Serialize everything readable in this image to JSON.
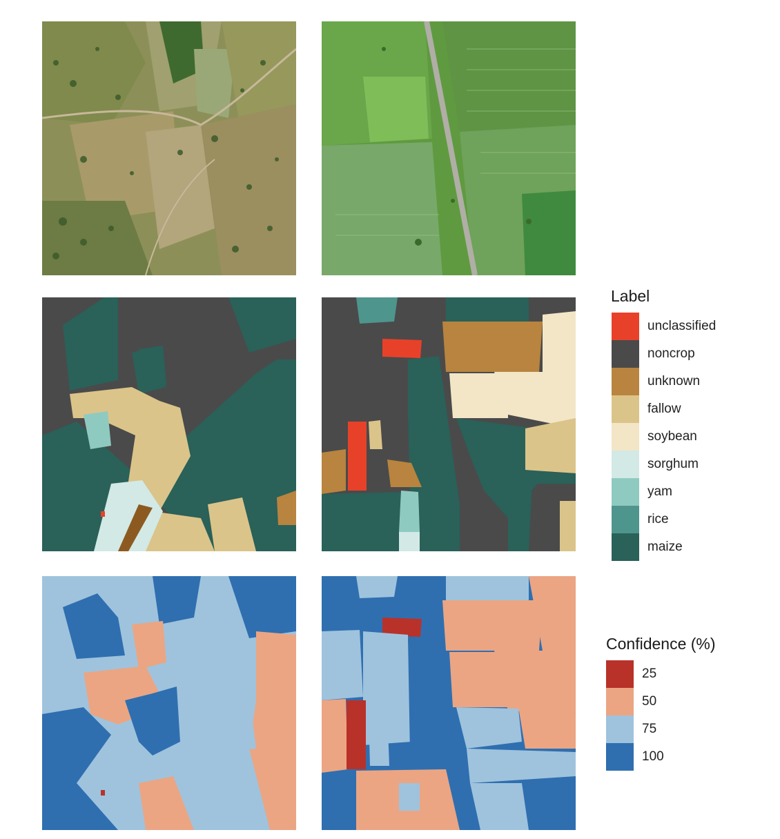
{
  "legends": {
    "label": {
      "title": "Label",
      "items": [
        {
          "label": "unclassified",
          "color": "#e8412a"
        },
        {
          "label": "noncrop",
          "color": "#4a4a4a"
        },
        {
          "label": "unknown",
          "color": "#b8843f"
        },
        {
          "label": "fallow",
          "color": "#dbc48a"
        },
        {
          "label": "soybean",
          "color": "#f2e6c6"
        },
        {
          "label": "sorghum",
          "color": "#d2e9e6"
        },
        {
          "label": "yam",
          "color": "#8fcac0"
        },
        {
          "label": "rice",
          "color": "#4e958d"
        },
        {
          "label": "maize",
          "color": "#2a6159"
        }
      ]
    },
    "confidence": {
      "title": "Confidence (%)",
      "items": [
        {
          "label": "25",
          "color": "#b8322a"
        },
        {
          "label": "50",
          "color": "#eba583"
        },
        {
          "label": "75",
          "color": "#9fc3dd"
        },
        {
          "label": "100",
          "color": "#2f6fb0"
        }
      ]
    }
  },
  "colors": {
    "sat_left_base": "#8a8f55",
    "sat_right_base": "#5e9a3e",
    "road": "#b0aea6"
  }
}
